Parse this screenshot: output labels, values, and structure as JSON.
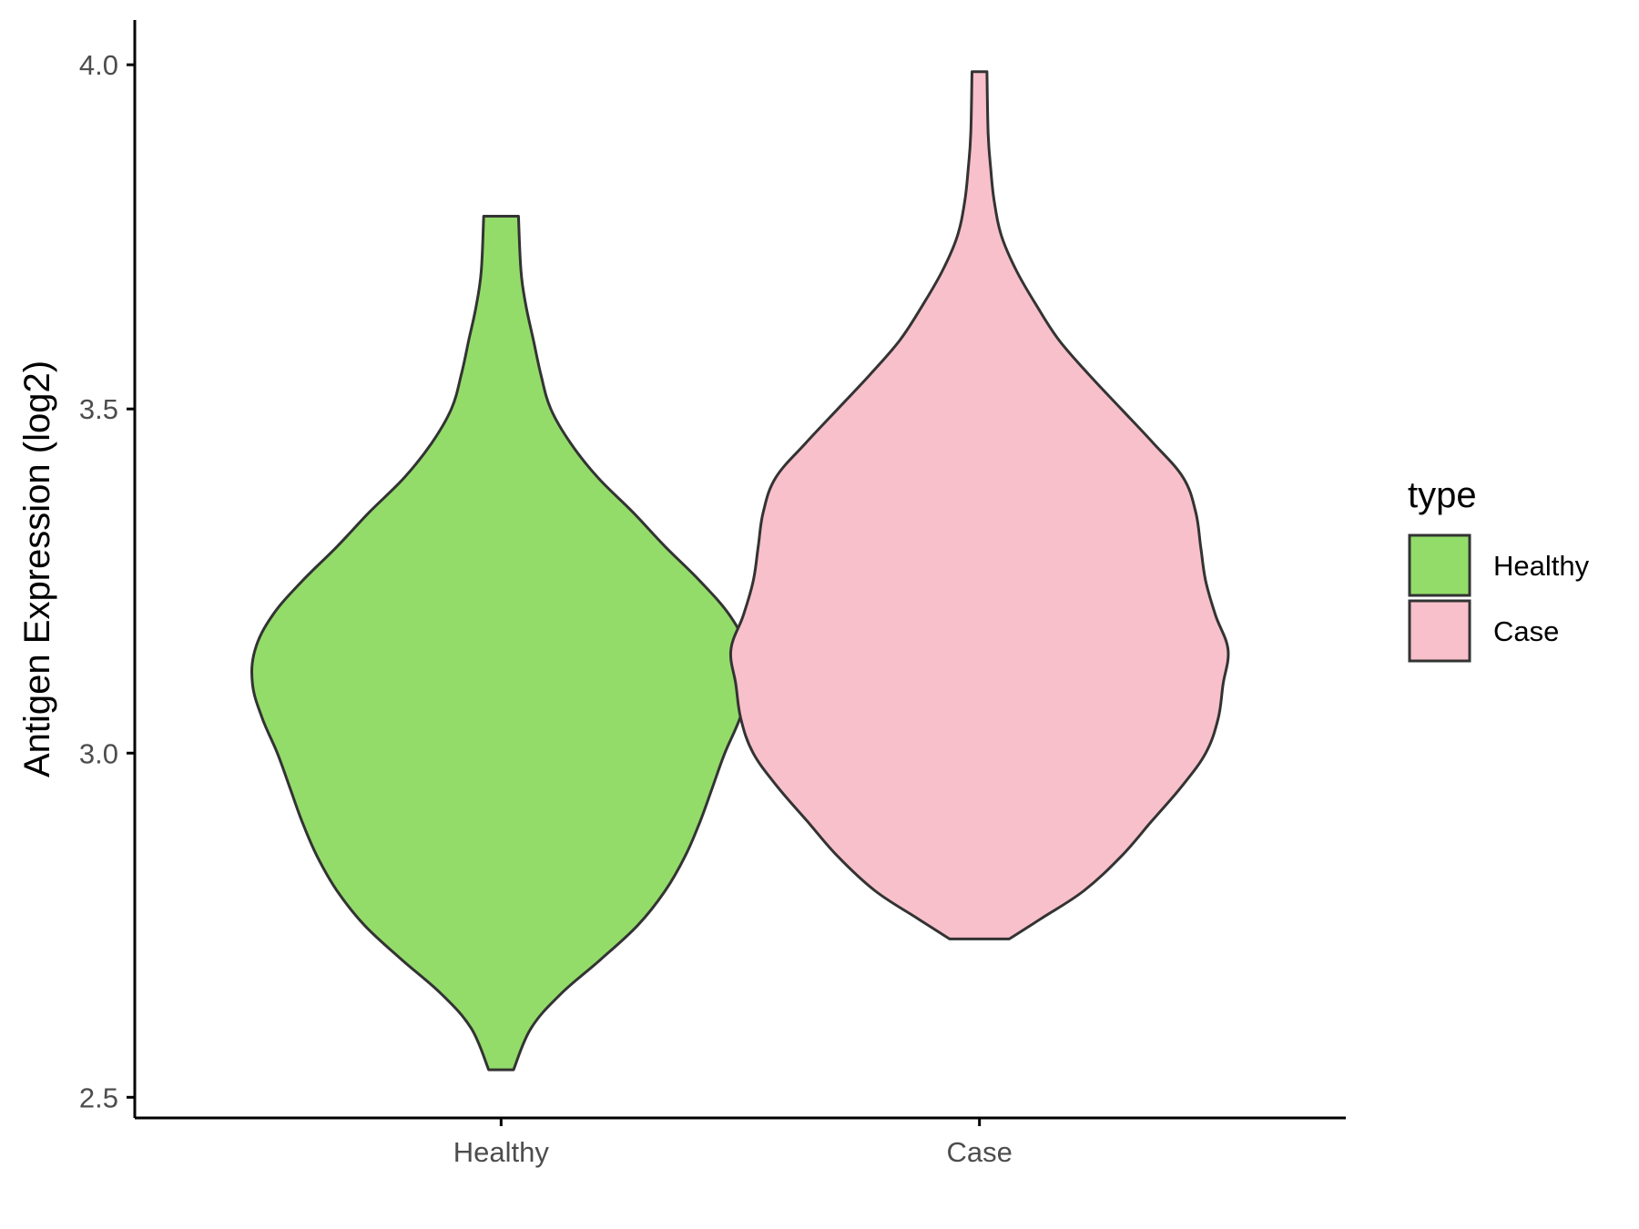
{
  "chart_data": {
    "type": "violin",
    "title": "",
    "xlabel": "",
    "ylabel": "Antigen Expression (log2)",
    "ylim": [
      2.47,
      4.065
    ],
    "yticks": [
      2.5,
      3.0,
      3.5,
      4.0
    ],
    "ytick_labels": [
      "2.5",
      "3.0",
      "3.5",
      "4.0"
    ],
    "grid": false,
    "legend": {
      "title": "type",
      "position": "right",
      "entries": [
        "Healthy",
        "Case"
      ]
    },
    "categories": [
      "Healthy",
      "Case"
    ],
    "series": [
      {
        "name": "Healthy",
        "color": "#93dc6a",
        "min": 2.54,
        "max": 3.78,
        "density_profile": [
          [
            2.54,
            0.05
          ],
          [
            2.6,
            0.12
          ],
          [
            2.65,
            0.24
          ],
          [
            2.7,
            0.4
          ],
          [
            2.75,
            0.55
          ],
          [
            2.8,
            0.66
          ],
          [
            2.85,
            0.74
          ],
          [
            2.9,
            0.8
          ],
          [
            2.95,
            0.85
          ],
          [
            3.0,
            0.9
          ],
          [
            3.05,
            0.96
          ],
          [
            3.1,
            1.0
          ],
          [
            3.15,
            0.99
          ],
          [
            3.2,
            0.92
          ],
          [
            3.25,
            0.8
          ],
          [
            3.3,
            0.66
          ],
          [
            3.35,
            0.53
          ],
          [
            3.4,
            0.39
          ],
          [
            3.45,
            0.28
          ],
          [
            3.5,
            0.2
          ],
          [
            3.55,
            0.16
          ],
          [
            3.6,
            0.13
          ],
          [
            3.65,
            0.1
          ],
          [
            3.7,
            0.08
          ],
          [
            3.78,
            0.07
          ]
        ]
      },
      {
        "name": "Case",
        "color": "#f8c0cb",
        "min": 2.73,
        "max": 3.99,
        "density_profile": [
          [
            2.73,
            0.12
          ],
          [
            2.76,
            0.25
          ],
          [
            2.8,
            0.42
          ],
          [
            2.85,
            0.57
          ],
          [
            2.9,
            0.69
          ],
          [
            2.95,
            0.81
          ],
          [
            3.0,
            0.91
          ],
          [
            3.05,
            0.96
          ],
          [
            3.1,
            0.98
          ],
          [
            3.15,
            1.0
          ],
          [
            3.2,
            0.95
          ],
          [
            3.25,
            0.91
          ],
          [
            3.3,
            0.89
          ],
          [
            3.35,
            0.87
          ],
          [
            3.4,
            0.82
          ],
          [
            3.45,
            0.7
          ],
          [
            3.5,
            0.57
          ],
          [
            3.55,
            0.44
          ],
          [
            3.6,
            0.32
          ],
          [
            3.65,
            0.23
          ],
          [
            3.7,
            0.15
          ],
          [
            3.75,
            0.09
          ],
          [
            3.8,
            0.06
          ],
          [
            3.85,
            0.045
          ],
          [
            3.9,
            0.035
          ],
          [
            3.99,
            0.03
          ]
        ]
      }
    ]
  }
}
